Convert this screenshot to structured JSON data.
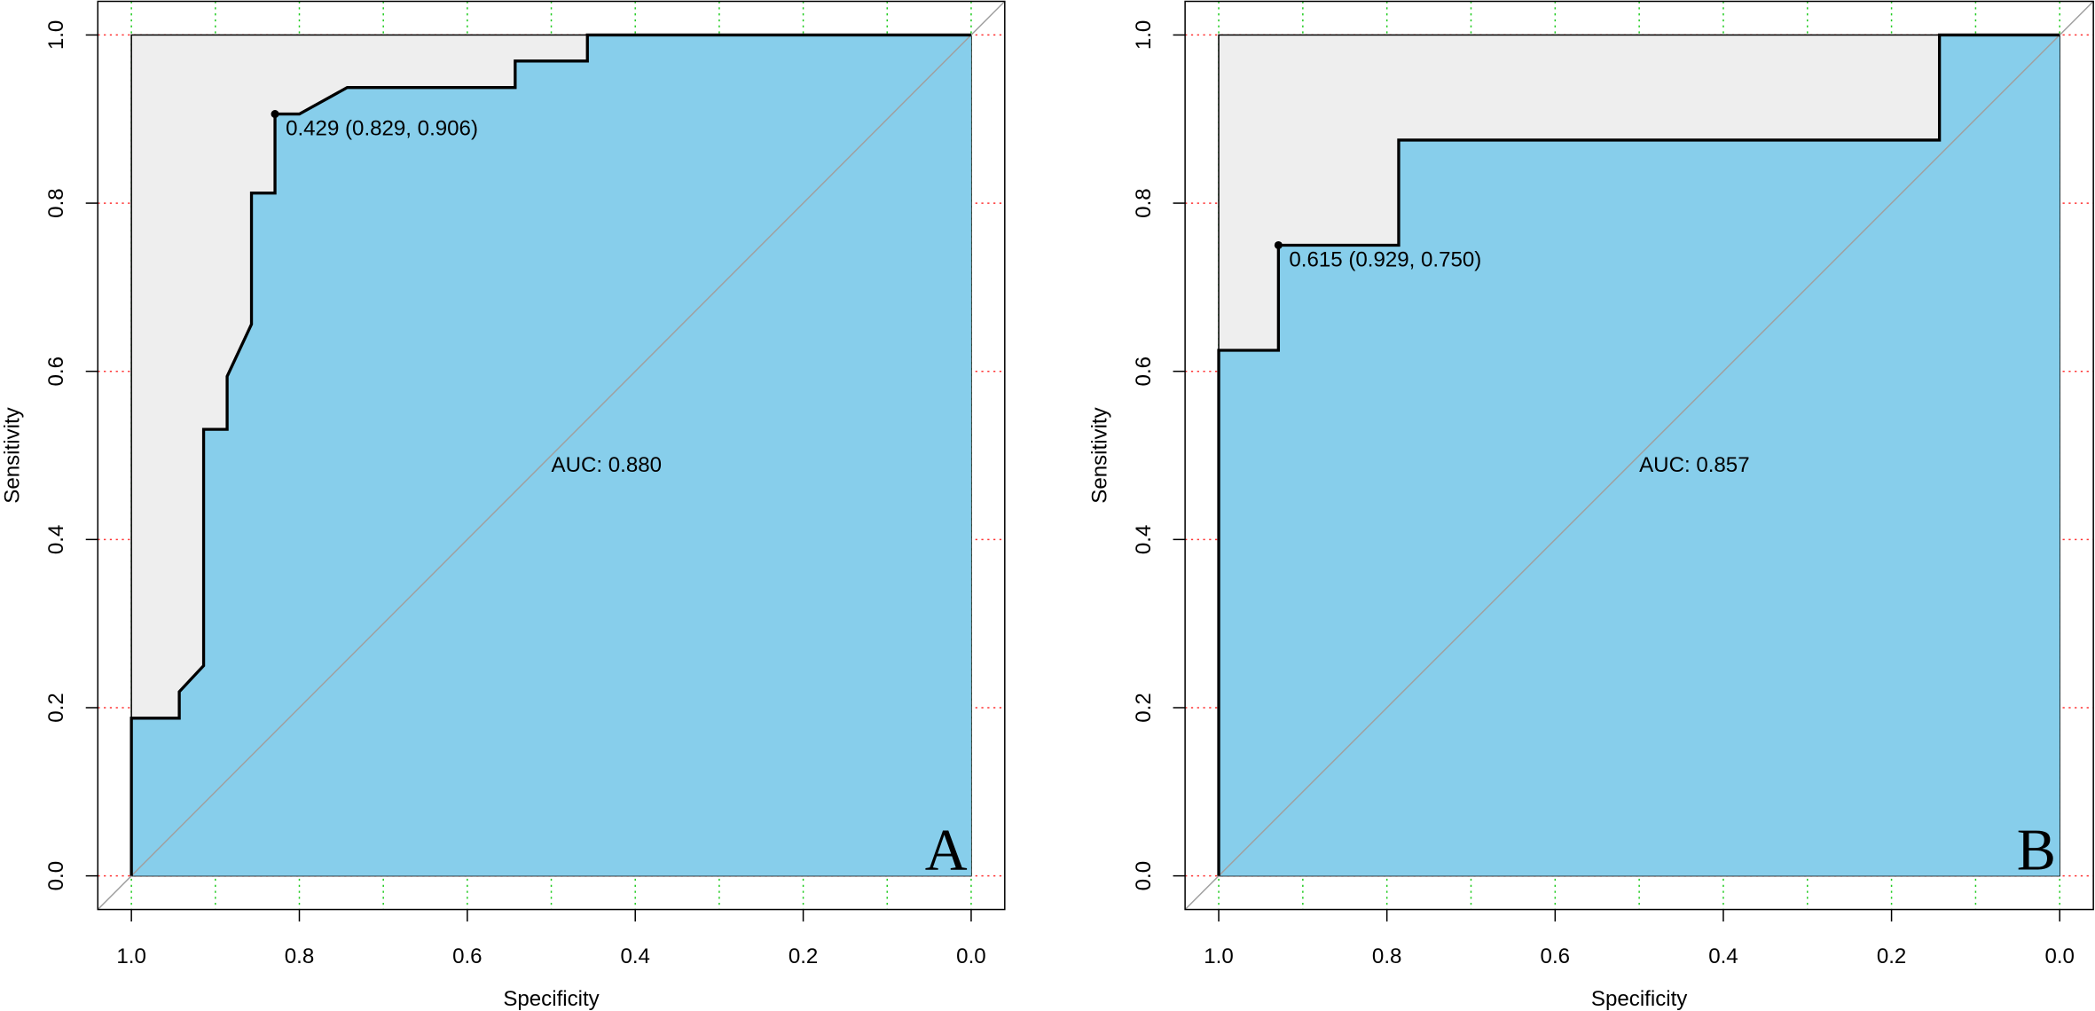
{
  "chart_data": [
    {
      "type": "roc",
      "xlabel": "Specificity",
      "ylabel": "Sensitivity",
      "x": [
        1,
        1,
        0.943,
        0.943,
        0.914,
        0.914,
        0.886,
        0.886,
        0.857,
        0.857,
        0.829,
        0.829,
        0.8,
        0.743,
        0.543,
        0.543,
        0.457,
        0.457,
        0
      ],
      "values": [
        0,
        0.1875,
        0.1875,
        0.219,
        0.25,
        0.531,
        0.531,
        0.594,
        0.656,
        0.812,
        0.812,
        0.906,
        0.906,
        0.9375,
        0.9375,
        0.969,
        0.969,
        1,
        1
      ],
      "highlight": {
        "x": 0.829,
        "y": 0.906,
        "label": "0.429 (0.829, 0.906)"
      },
      "auc_label": "AUC: 0.880",
      "panel_label": "A",
      "xlim": [
        1.04,
        -0.04
      ],
      "ylim": [
        -0.04,
        1.04
      ],
      "xticks": [
        {
          "value": 1,
          "label": "1.0"
        },
        0.8,
        0.6,
        0.4,
        0.2,
        {
          "value": 0,
          "label": "0.0"
        }
      ],
      "yticks": [
        {
          "value": 0,
          "label": "0.0"
        },
        0.2,
        0.4,
        0.6,
        0.8,
        {
          "value": 1,
          "label": "1.0"
        }
      ],
      "xgrid": [
        1,
        0.9,
        0.8,
        0.7,
        0.6,
        0.5,
        0.4,
        0.3,
        0.2,
        0.1,
        0
      ],
      "grid": true,
      "xgrid_color": "#22cc22",
      "ygrid_color": "#ff3333",
      "line_color": "#000000",
      "fill_color": "#87ceeb",
      "background_fill_color": "#eeeeee",
      "diagonal_color": "#a0a0a0"
    },
    {
      "type": "roc",
      "xlabel": "Specificity",
      "ylabel": "Sensitivity",
      "x": [
        1,
        1,
        0.929,
        0.929,
        0.786,
        0.786,
        0.143,
        0.143,
        0
      ],
      "values": [
        0,
        0.625,
        0.625,
        0.75,
        0.75,
        0.875,
        0.875,
        1,
        1
      ],
      "highlight": {
        "x": 0.929,
        "y": 0.75,
        "label": "0.615 (0.929, 0.750)"
      },
      "auc_label": "AUC: 0.857",
      "panel_label": "B",
      "xlim": [
        1.04,
        -0.04
      ],
      "ylim": [
        -0.04,
        1.04
      ],
      "xticks": [
        {
          "value": 1,
          "label": "1.0"
        },
        0.8,
        0.6,
        0.4,
        0.2,
        {
          "value": 0,
          "label": "0.0"
        }
      ],
      "yticks": [
        {
          "value": 0,
          "label": "0.0"
        },
        0.2,
        0.4,
        0.6,
        0.8,
        {
          "value": 1,
          "label": "1.0"
        }
      ],
      "xgrid": [
        1,
        0.9,
        0.8,
        0.7,
        0.6,
        0.5,
        0.4,
        0.3,
        0.2,
        0.1,
        0
      ],
      "grid": true,
      "xgrid_color": "#22cc22",
      "ygrid_color": "#ff3333",
      "line_color": "#000000",
      "fill_color": "#87ceeb",
      "background_fill_color": "#eeeeee",
      "diagonal_color": "#a0a0a0"
    }
  ]
}
